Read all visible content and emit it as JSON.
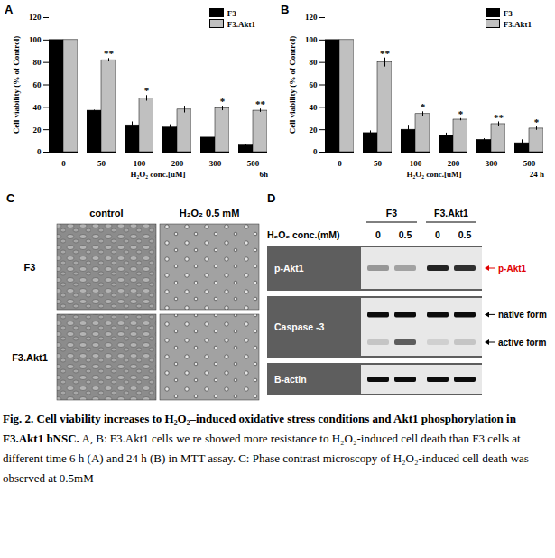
{
  "chart_data": [
    {
      "type": "bar",
      "letter": "A",
      "categories": [
        "0",
        "50",
        "100",
        "200",
        "300",
        "500"
      ],
      "x_label": "H₂O₂ conc.[uM]",
      "time_label": "6h",
      "y_label": "Cell viability (% of Control)",
      "ylim": [
        0,
        120
      ],
      "yticks": [
        0,
        20,
        40,
        60,
        80,
        100,
        120
      ],
      "legend": "top-right",
      "series": [
        {
          "name": "F3",
          "color": "#000000",
          "values": [
            100,
            37,
            24,
            22,
            13,
            6
          ],
          "errors": [
            0,
            0.5,
            3,
            2.5,
            1,
            0.5
          ]
        },
        {
          "name": "F3.Akt1",
          "color": "#c0c0c0",
          "values": [
            100,
            82,
            48,
            38,
            39,
            37
          ],
          "errors": [
            0,
            1.5,
            2.5,
            3,
            2,
            1.5
          ],
          "significance": [
            null,
            "**",
            "*",
            null,
            "*",
            "**"
          ]
        }
      ]
    },
    {
      "type": "bar",
      "letter": "B",
      "categories": [
        "0",
        "50",
        "100",
        "200",
        "300",
        "500"
      ],
      "x_label": "H₂O₂ conc.[uM]",
      "time_label": "24 h",
      "y_label": "Cell viability (% of Control)",
      "ylim": [
        0,
        120
      ],
      "yticks": [
        0,
        20,
        40,
        60,
        80,
        100,
        120
      ],
      "legend": "top-right",
      "series": [
        {
          "name": "F3",
          "color": "#000000",
          "values": [
            100,
            17,
            20,
            15,
            11,
            8
          ],
          "errors": [
            0,
            2,
            4,
            2,
            1,
            3
          ]
        },
        {
          "name": "F3.Akt1",
          "color": "#c0c0c0",
          "values": [
            100,
            80,
            34,
            29,
            25,
            21
          ],
          "errors": [
            0,
            4,
            2,
            1,
            2,
            1.5
          ],
          "significance": [
            null,
            "**",
            "*",
            "*",
            "**",
            "*"
          ]
        }
      ]
    }
  ],
  "panel_c": {
    "letter": "C",
    "columns": [
      "control",
      "H₂O₂ 0.5 mM"
    ],
    "rows": [
      "F3",
      "F3.Akt1"
    ]
  },
  "panel_d": {
    "letter": "D",
    "lane_header": "H₂O₂ conc.(mM)",
    "groups": [
      {
        "name": "F3",
        "lanes": [
          "0",
          "0.5"
        ]
      },
      {
        "name": "F3.Akt1",
        "lanes": [
          "0",
          "0.5"
        ]
      }
    ],
    "rows": [
      {
        "label": "p-Akt1",
        "bands": [
          {
            "intensity": [
              0.35,
              0.3,
              0.85,
              0.8
            ],
            "annotation": "p-Akt1",
            "color": "#e00000"
          }
        ]
      },
      {
        "label": "Caspase -3",
        "bands": [
          {
            "intensity": [
              0.95,
              0.95,
              0.95,
              0.95
            ],
            "annotation": "native form",
            "color": "#000000"
          },
          {
            "intensity": [
              0.15,
              0.6,
              0.1,
              0.15
            ],
            "annotation": "active form",
            "color": "#000000"
          }
        ]
      },
      {
        "label": "B-actin",
        "bands": [
          {
            "intensity": [
              0.95,
              0.95,
              0.95,
              0.95
            ]
          }
        ]
      }
    ]
  },
  "caption": {
    "title": "Fig. 2. Cell viability increases to H₂O₂–induced oxidative stress conditions and Akt1 phosphorylation in F3.Akt1 hNSC.",
    "text": "A, B: F3.Akt1 cells we re showed more resistance to H₂O₂-induced cell death than F3 cells at different time 6 h (A) and 24 h (B) in MTT assay. C: Phase contrast microscopy of H₂O₂-induced cell death was observed at 0.5mM"
  }
}
